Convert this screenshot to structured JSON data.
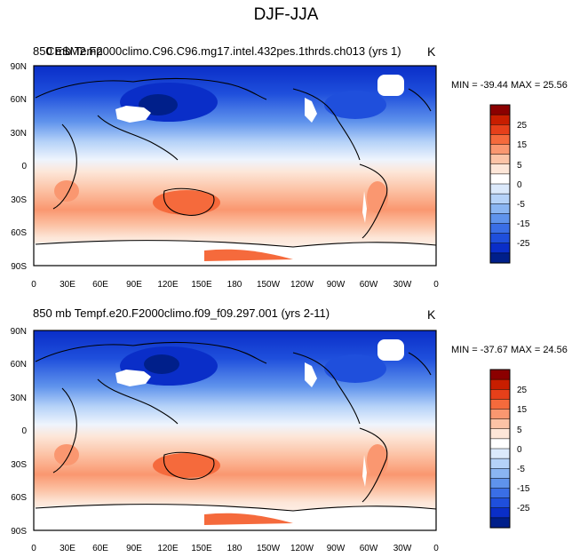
{
  "figure": {
    "title": "DJF-JJA"
  },
  "panels": [
    {
      "title_overlay_a": "850 mb Temp",
      "title_overlay_b": "CESM2.F2000climo.C96.C96.mg17.intel.432pes.1thrds.ch013 (yrs 1)",
      "units": "K",
      "stats": "MIN = -39.44 MAX =  25.56"
    },
    {
      "title": "850 mb Tempf.e20.F2000climo.f09_f09.297.001 (yrs 2-11)",
      "units": "K",
      "stats": "MIN = -37.67 MAX =  24.56"
    }
  ],
  "axes": {
    "lat_ticks": [
      "90N",
      "60N",
      "30N",
      "0",
      "30S",
      "60S",
      "90S"
    ],
    "lon_ticks": [
      "0",
      "30E",
      "60E",
      "90E",
      "120E",
      "150E",
      "180",
      "150W",
      "120W",
      "90W",
      "60W",
      "30W",
      "0"
    ]
  },
  "colorbar": {
    "labels": [
      "25",
      "15",
      "5",
      "0",
      "-5",
      "-15",
      "-25"
    ],
    "colors": [
      "#8b0000",
      "#c81e00",
      "#e6401a",
      "#f56a3c",
      "#fa9770",
      "#fcc3a6",
      "#fde6d8",
      "#ffffff",
      "#dbe9fb",
      "#b5d2f8",
      "#8ab5f2",
      "#5f93ec",
      "#3a6ee6",
      "#1f4fdc",
      "#0a2ec8",
      "#001f8a"
    ]
  }
}
